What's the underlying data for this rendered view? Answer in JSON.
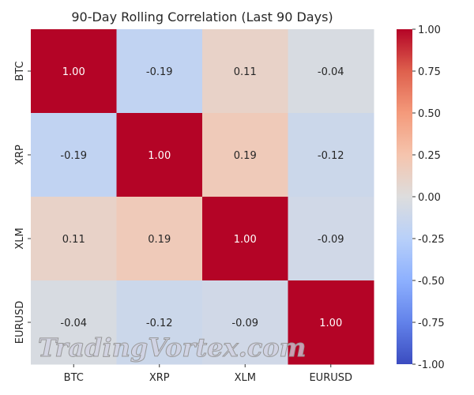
{
  "chart_data": {
    "type": "heatmap",
    "title": "90-Day Rolling Correlation (Last 90 Days)",
    "x_labels": [
      "BTC",
      "XRP",
      "XLM",
      "EURUSD"
    ],
    "y_labels": [
      "BTC",
      "XRP",
      "XLM",
      "EURUSD"
    ],
    "values": [
      [
        1.0,
        -0.19,
        0.11,
        -0.04
      ],
      [
        -0.19,
        1.0,
        0.19,
        -0.12
      ],
      [
        0.11,
        0.19,
        1.0,
        -0.09
      ],
      [
        -0.04,
        -0.12,
        -0.09,
        1.0
      ]
    ],
    "colormap": "coolwarm",
    "vmin": -1,
    "vmax": 1,
    "colorbar_ticks": [
      "1.00",
      "0.75",
      "0.50",
      "0.25",
      "0.00",
      "-0.25",
      "-0.50",
      "-0.75",
      "-1.00"
    ]
  },
  "watermark": "TradingVortex.com"
}
